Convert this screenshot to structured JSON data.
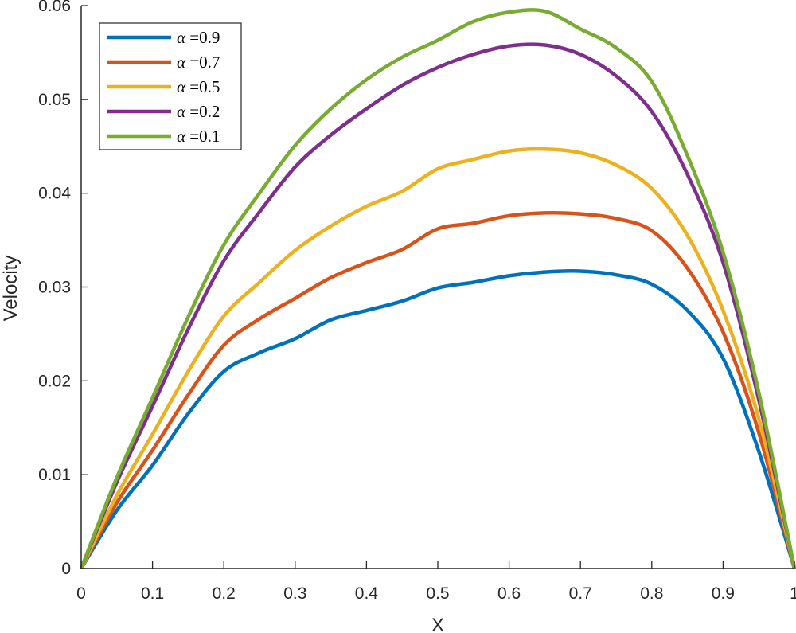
{
  "chart_data": {
    "type": "line",
    "title": "",
    "xlabel": "X",
    "ylabel": "Velocity",
    "xlim": [
      0,
      1
    ],
    "ylim": [
      0,
      0.06
    ],
    "xticks": [
      "0",
      "0.1",
      "0.2",
      "0.3",
      "0.4",
      "0.5",
      "0.6",
      "0.7",
      "0.8",
      "0.9",
      "1"
    ],
    "yticks": [
      "0",
      "0.01",
      "0.02",
      "0.03",
      "0.04",
      "0.05",
      "0.06"
    ],
    "grid": false,
    "legend_position": "upper-left",
    "x": [
      0,
      0.05,
      0.1,
      0.15,
      0.2,
      0.25,
      0.3,
      0.35,
      0.4,
      0.45,
      0.5,
      0.55,
      0.6,
      0.65,
      0.7,
      0.75,
      0.8,
      0.85,
      0.9,
      0.95,
      1.0
    ],
    "series": [
      {
        "name": "α =0.9",
        "label_prefix": "α",
        "label_value": "=0.9",
        "color": "#0072BD",
        "values": [
          0,
          0.0062,
          0.011,
          0.0165,
          0.021,
          0.023,
          0.0245,
          0.0265,
          0.0275,
          0.0285,
          0.0299,
          0.0305,
          0.0312,
          0.0316,
          0.0317,
          0.0313,
          0.0303,
          0.0275,
          0.0224,
          0.0125,
          0
        ]
      },
      {
        "name": "α =0.7",
        "label_prefix": "α",
        "label_value": "=0.7",
        "color": "#D95319",
        "values": [
          0,
          0.007,
          0.0126,
          0.0185,
          0.0238,
          0.0266,
          0.0288,
          0.031,
          0.0326,
          0.034,
          0.0362,
          0.0368,
          0.0376,
          0.0379,
          0.0378,
          0.0373,
          0.036,
          0.032,
          0.0252,
          0.0145,
          0
        ]
      },
      {
        "name": "α =0.5",
        "label_prefix": "α",
        "label_value": "=0.5",
        "color": "#EDB120",
        "values": [
          0,
          0.0078,
          0.0143,
          0.021,
          0.0269,
          0.0305,
          0.0339,
          0.0365,
          0.0386,
          0.0402,
          0.0426,
          0.0436,
          0.0445,
          0.0447,
          0.0443,
          0.043,
          0.0405,
          0.0355,
          0.0275,
          0.016,
          0
        ]
      },
      {
        "name": "α =0.2",
        "label_prefix": "α",
        "label_value": "=0.2",
        "color": "#7E2F8E",
        "values": [
          0,
          0.0092,
          0.0173,
          0.0255,
          0.0328,
          0.038,
          0.0428,
          0.0462,
          0.049,
          0.0515,
          0.0534,
          0.0548,
          0.0557,
          0.0558,
          0.0548,
          0.0525,
          0.0487,
          0.042,
          0.0326,
          0.018,
          0
        ]
      },
      {
        "name": "α =0.1",
        "label_prefix": "α",
        "label_value": "=0.1",
        "color": "#77AC30",
        "values": [
          0,
          0.0097,
          0.0182,
          0.0268,
          0.0345,
          0.04,
          0.0451,
          0.049,
          0.0521,
          0.0545,
          0.0563,
          0.0583,
          0.0593,
          0.0594,
          0.0575,
          0.0555,
          0.0519,
          0.044,
          0.0337,
          0.0188,
          0
        ]
      }
    ]
  }
}
